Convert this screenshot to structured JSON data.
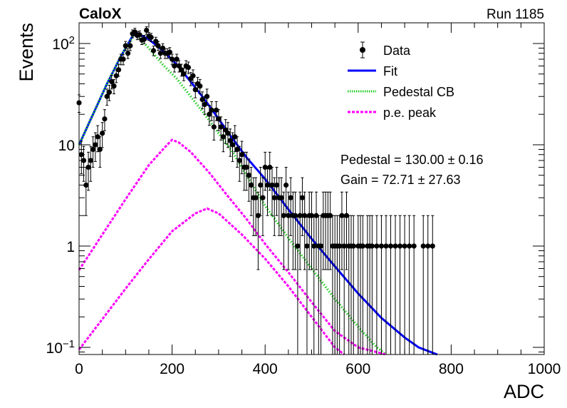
{
  "header": {
    "experiment": "CaloX",
    "run": "Run 1185"
  },
  "chart_data": {
    "type": "scatter",
    "title": "",
    "xlabel": "ADC",
    "ylabel": "Events",
    "xlim": [
      0,
      1000
    ],
    "ylim": [
      0.085,
      160
    ],
    "yscale": "log",
    "x_ticks": [
      "0",
      "200",
      "400",
      "600",
      "800",
      "1000"
    ],
    "y_ticks": [
      {
        "value": 0.1,
        "base": "10",
        "exp": "−1"
      },
      {
        "value": 1,
        "base": "1",
        "exp": ""
      },
      {
        "value": 10,
        "base": "10",
        "exp": ""
      },
      {
        "value": 100,
        "base": "10",
        "exp": "2"
      }
    ],
    "grid": false,
    "legend_position": "top-right",
    "legend": [
      {
        "label": "Data",
        "kind": "marker",
        "color": "#000000"
      },
      {
        "label": "Fit",
        "kind": "line",
        "color": "#0000ff"
      },
      {
        "label": "Pedestal CB",
        "kind": "dotted",
        "color": "#22cc22"
      },
      {
        "label": "p.e. peak",
        "kind": "dashed",
        "color": "#ff00ff"
      }
    ],
    "annotations": [
      {
        "id": "pedestal",
        "text": "Pedestal = 130.00 ± 0.16"
      },
      {
        "id": "gain",
        "text": "Gain = 72.71 ± 27.63"
      }
    ],
    "series": [
      {
        "name": "Data",
        "style": "points",
        "color": "#000000",
        "points": [
          [
            0,
            26
          ],
          [
            5,
            8
          ],
          [
            10,
            7
          ],
          [
            15,
            4
          ],
          [
            20,
            6
          ],
          [
            25,
            7
          ],
          [
            30,
            9
          ],
          [
            35,
            10
          ],
          [
            40,
            12
          ],
          [
            45,
            9
          ],
          [
            50,
            13
          ],
          [
            55,
            18
          ],
          [
            60,
            30
          ],
          [
            65,
            33
          ],
          [
            70,
            42
          ],
          [
            75,
            38
          ],
          [
            80,
            48
          ],
          [
            85,
            55
          ],
          [
            90,
            70
          ],
          [
            95,
            70
          ],
          [
            100,
            95
          ],
          [
            105,
            80
          ],
          [
            110,
            95
          ],
          [
            115,
            125
          ],
          [
            120,
            130
          ],
          [
            125,
            120
          ],
          [
            130,
            122
          ],
          [
            135,
            108
          ],
          [
            140,
            110
          ],
          [
            145,
            135
          ],
          [
            150,
            118
          ],
          [
            155,
            115
          ],
          [
            160,
            85
          ],
          [
            165,
            105
          ],
          [
            170,
            95
          ],
          [
            175,
            80
          ],
          [
            180,
            90
          ],
          [
            185,
            80
          ],
          [
            190,
            80
          ],
          [
            195,
            82
          ],
          [
            200,
            70
          ],
          [
            205,
            60
          ],
          [
            210,
            70
          ],
          [
            215,
            60
          ],
          [
            220,
            55
          ],
          [
            225,
            50
          ],
          [
            230,
            60
          ],
          [
            235,
            58
          ],
          [
            240,
            45
          ],
          [
            245,
            48
          ],
          [
            250,
            35
          ],
          [
            255,
            40
          ],
          [
            260,
            38
          ],
          [
            265,
            28
          ],
          [
            270,
            25
          ],
          [
            275,
            30
          ],
          [
            280,
            20
          ],
          [
            285,
            22
          ],
          [
            290,
            15
          ],
          [
            295,
            22
          ],
          [
            300,
            18
          ],
          [
            305,
            15
          ],
          [
            310,
            12
          ],
          [
            315,
            14
          ],
          [
            320,
            13
          ],
          [
            325,
            11
          ],
          [
            330,
            10
          ],
          [
            335,
            12
          ],
          [
            340,
            9
          ],
          [
            345,
            7
          ],
          [
            350,
            8
          ],
          [
            355,
            6
          ],
          [
            360,
            6
          ],
          [
            365,
            5
          ],
          [
            370,
            4
          ],
          [
            375,
            3
          ],
          [
            380,
            3
          ],
          [
            385,
            2
          ],
          [
            390,
            4
          ],
          [
            395,
            3
          ],
          [
            400,
            6
          ],
          [
            405,
            4
          ],
          [
            410,
            6
          ],
          [
            415,
            4
          ],
          [
            420,
            3
          ],
          [
            425,
            4
          ],
          [
            430,
            3
          ],
          [
            435,
            3
          ],
          [
            440,
            2
          ],
          [
            445,
            4
          ],
          [
            450,
            2
          ],
          [
            455,
            3
          ],
          [
            460,
            2
          ],
          [
            465,
            2
          ],
          [
            470,
            1
          ],
          [
            475,
            2
          ],
          [
            480,
            3
          ],
          [
            485,
            2
          ],
          [
            490,
            1
          ],
          [
            495,
            2
          ],
          [
            500,
            2
          ],
          [
            505,
            1
          ],
          [
            510,
            2
          ],
          [
            515,
            1
          ],
          [
            520,
            1
          ],
          [
            525,
            2
          ],
          [
            530,
            2
          ],
          [
            535,
            2
          ],
          [
            540,
            2
          ],
          [
            545,
            1
          ],
          [
            550,
            1
          ],
          [
            555,
            1
          ],
          [
            560,
            1
          ],
          [
            565,
            2
          ],
          [
            570,
            1
          ],
          [
            575,
            2
          ],
          [
            580,
            1
          ],
          [
            585,
            1
          ],
          [
            590,
            1
          ],
          [
            600,
            1
          ],
          [
            605,
            1
          ],
          [
            610,
            1
          ],
          [
            620,
            1
          ],
          [
            625,
            1
          ],
          [
            630,
            1
          ],
          [
            640,
            1
          ],
          [
            650,
            1
          ],
          [
            660,
            1
          ],
          [
            670,
            1
          ],
          [
            680,
            1
          ],
          [
            690,
            1
          ],
          [
            700,
            1
          ],
          [
            710,
            1
          ],
          [
            720,
            1
          ],
          [
            740,
            1
          ],
          [
            750,
            1
          ],
          [
            760,
            1
          ]
        ]
      },
      {
        "name": "Fit",
        "style": "line",
        "color": "#0000ff",
        "points": [
          [
            0,
            10
          ],
          [
            30,
            20
          ],
          [
            60,
            40
          ],
          [
            90,
            75
          ],
          [
            120,
            130
          ],
          [
            150,
            110
          ],
          [
            180,
            85
          ],
          [
            210,
            62
          ],
          [
            240,
            42
          ],
          [
            270,
            28
          ],
          [
            300,
            18
          ],
          [
            330,
            11.5
          ],
          [
            360,
            7.5
          ],
          [
            400,
            4.6
          ],
          [
            450,
            2.3
          ],
          [
            500,
            1.18
          ],
          [
            550,
            0.63
          ],
          [
            600,
            0.34
          ],
          [
            650,
            0.195
          ],
          [
            700,
            0.125
          ],
          [
            730,
            0.1
          ],
          [
            770,
            0.085
          ]
        ]
      },
      {
        "name": "Pedestal CB",
        "style": "dotted",
        "color": "#22cc22",
        "points": [
          [
            0,
            10
          ],
          [
            30,
            20
          ],
          [
            60,
            40
          ],
          [
            90,
            75
          ],
          [
            120,
            125
          ],
          [
            150,
            90
          ],
          [
            180,
            62
          ],
          [
            210,
            45
          ],
          [
            240,
            30
          ],
          [
            270,
            20
          ],
          [
            300,
            13
          ],
          [
            330,
            8.5
          ],
          [
            360,
            5
          ],
          [
            400,
            2.5
          ],
          [
            450,
            1.2
          ],
          [
            500,
            0.6
          ],
          [
            550,
            0.3
          ],
          [
            600,
            0.16
          ],
          [
            640,
            0.1
          ],
          [
            660,
            0.085
          ]
        ]
      },
      {
        "name": "p.e. peak 1",
        "style": "dashed",
        "color": "#ff00ff",
        "points": [
          [
            0,
            0.58
          ],
          [
            50,
            1.3
          ],
          [
            100,
            2.9
          ],
          [
            150,
            6.3
          ],
          [
            185,
            9.5
          ],
          [
            200,
            11.2
          ],
          [
            215,
            10.5
          ],
          [
            240,
            8.5
          ],
          [
            280,
            5.3
          ],
          [
            320,
            3.1
          ],
          [
            360,
            1.85
          ],
          [
            400,
            1.05
          ],
          [
            450,
            0.55
          ],
          [
            500,
            0.28
          ],
          [
            550,
            0.145
          ],
          [
            600,
            0.1
          ],
          [
            660,
            0.085
          ]
        ]
      },
      {
        "name": "p.e. peak 2",
        "style": "dashed",
        "color": "#ff00ff",
        "points": [
          [
            0,
            0.095
          ],
          [
            50,
            0.19
          ],
          [
            100,
            0.38
          ],
          [
            150,
            0.74
          ],
          [
            200,
            1.4
          ],
          [
            250,
            2.1
          ],
          [
            275,
            2.35
          ],
          [
            300,
            2.1
          ],
          [
            350,
            1.3
          ],
          [
            400,
            0.75
          ],
          [
            450,
            0.4
          ],
          [
            500,
            0.2
          ],
          [
            550,
            0.1
          ],
          [
            570,
            0.085
          ]
        ]
      }
    ]
  }
}
